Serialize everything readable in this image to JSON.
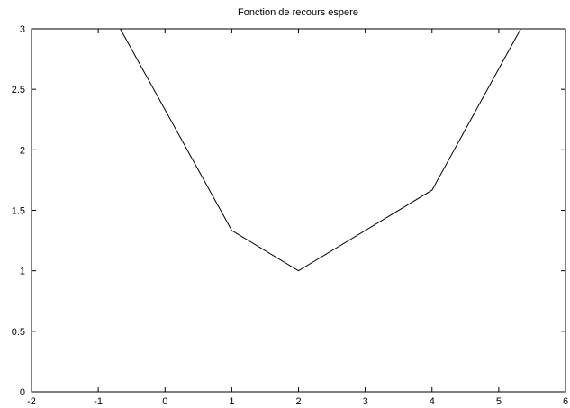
{
  "chart_data": {
    "type": "line",
    "title": "Fonction de recours espere",
    "xlabel": "",
    "ylabel": "",
    "xlim": [
      -2,
      6
    ],
    "ylim": [
      0,
      3
    ],
    "xticks": [
      "-2",
      "-1",
      "0",
      "1",
      "2",
      "3",
      "4",
      "5",
      "6"
    ],
    "yticks": [
      "0",
      "0.5",
      "1",
      "1.5",
      "2",
      "2.5",
      "3"
    ],
    "grid": false,
    "legend": "none",
    "series": [
      {
        "color": "#000000",
        "x": [
          -0.67,
          1,
          2,
          4,
          5.33
        ],
        "y": [
          3,
          1.333,
          1,
          1.667,
          3
        ]
      }
    ]
  }
}
